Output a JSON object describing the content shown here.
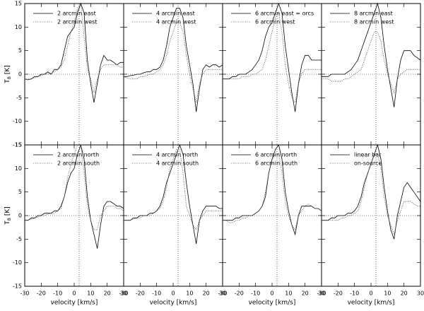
{
  "chart_data": [
    {
      "type": "line",
      "xlim": [
        -30,
        30
      ],
      "ylim": [
        -15,
        15
      ],
      "xticks": [
        -30,
        -20,
        -10,
        0,
        10,
        20,
        30
      ],
      "yticks": [
        -15,
        -10,
        -5,
        0,
        5,
        10,
        15
      ],
      "xtick_labels": false,
      "ytick_labels": true,
      "ylabel": "T",
      "ylabel_sub": "B",
      "ylabel_unit": "[K]",
      "hline": 0,
      "vline": 3,
      "x": [
        -30,
        -28,
        -26,
        -24,
        -22,
        -20,
        -18,
        -16,
        -14,
        -12,
        -10,
        -8,
        -6,
        -4,
        -2,
        0,
        2,
        4,
        6,
        8,
        10,
        12,
        14,
        16,
        18,
        20,
        22,
        24,
        26,
        28,
        30
      ],
      "series": [
        {
          "name": "2 arcmin east",
          "color": "#000000",
          "style": "solid",
          "values": [
            -1,
            -1.2,
            -1,
            -0.5,
            -0.5,
            0,
            0,
            0.5,
            0,
            1,
            1,
            2,
            5,
            8,
            9,
            10,
            13,
            15,
            13,
            3,
            -2,
            -6,
            -2,
            2,
            4,
            3,
            3,
            2.5,
            2,
            2.5,
            2.5
          ]
        },
        {
          "name": "2 arcmin west",
          "color": "#555555",
          "style": "dotted",
          "values": [
            -1,
            -1,
            -1,
            -0.8,
            -0.5,
            -0.3,
            0,
            0,
            0.2,
            0.5,
            1,
            1.5,
            3,
            6,
            9,
            11,
            14,
            15,
            8,
            1,
            -1,
            -4,
            -1,
            1,
            2,
            2,
            2,
            2,
            2,
            1.5,
            1.5
          ]
        }
      ]
    },
    {
      "type": "line",
      "xlim": [
        -30,
        30
      ],
      "ylim": [
        -15,
        15
      ],
      "xticks": [
        -30,
        -20,
        -10,
        0,
        10,
        20,
        30
      ],
      "yticks": [
        -15,
        -10,
        -5,
        0,
        5,
        10,
        15
      ],
      "xtick_labels": false,
      "ytick_labels": false,
      "hline": 0,
      "vline": 3,
      "x": [
        -30,
        -28,
        -26,
        -24,
        -22,
        -20,
        -18,
        -16,
        -14,
        -12,
        -10,
        -8,
        -6,
        -4,
        -2,
        0,
        2,
        4,
        6,
        8,
        10,
        12,
        14,
        16,
        18,
        20,
        22,
        24,
        26,
        28,
        30
      ],
      "series": [
        {
          "name": "4 arcmin east",
          "color": "#000000",
          "style": "solid",
          "values": [
            -0.5,
            -0.5,
            -0.3,
            -0.2,
            0,
            0,
            0.3,
            0.5,
            0.5,
            1,
            1,
            1.5,
            3,
            6,
            10,
            12,
            14,
            14,
            12,
            6,
            2,
            -2,
            -8,
            -3,
            1,
            2,
            1.5,
            2,
            2,
            1.5,
            2
          ]
        },
        {
          "name": "4 arcmin west",
          "color": "#555555",
          "style": "dotted",
          "values": [
            -0.5,
            -0.8,
            -1,
            -1,
            -1,
            -0.5,
            -0.5,
            -0.3,
            0,
            0,
            0.5,
            1,
            2,
            4,
            7,
            9,
            11,
            11,
            9,
            4,
            0,
            -3,
            -6,
            -2,
            0,
            1,
            1,
            1,
            1,
            1,
            1
          ]
        }
      ]
    },
    {
      "type": "line",
      "xlim": [
        -30,
        30
      ],
      "ylim": [
        -15,
        15
      ],
      "xticks": [
        -30,
        -20,
        -10,
        0,
        10,
        20,
        30
      ],
      "yticks": [
        -15,
        -10,
        -5,
        0,
        5,
        10,
        15
      ],
      "xtick_labels": false,
      "ytick_labels": false,
      "hline": 0,
      "vline": 3,
      "x": [
        -30,
        -28,
        -26,
        -24,
        -22,
        -20,
        -18,
        -16,
        -14,
        -12,
        -10,
        -8,
        -6,
        -4,
        -2,
        0,
        2,
        4,
        6,
        8,
        10,
        12,
        14,
        16,
        18,
        20,
        22,
        24,
        26,
        28,
        30
      ],
      "series": [
        {
          "name": "6 arcmin east = orcs",
          "color": "#000000",
          "style": "solid",
          "values": [
            -1,
            -1,
            -1,
            -0.5,
            -0.5,
            0,
            0,
            0,
            0.5,
            1,
            2,
            3,
            5,
            8,
            10,
            11,
            13,
            15,
            13,
            6,
            1,
            -4,
            -8,
            -2,
            2,
            4,
            4,
            3,
            3,
            3,
            3
          ]
        },
        {
          "name": "6 arcmin west",
          "color": "#555555",
          "style": "dotted",
          "values": [
            -1,
            -1,
            -1,
            -1,
            -1,
            -1,
            -0.5,
            -0.5,
            -0.5,
            0,
            0,
            0.5,
            1,
            3,
            6,
            9,
            12,
            13,
            9,
            2,
            -2,
            -5,
            -6,
            -2,
            0,
            1,
            1,
            1,
            1,
            1,
            1
          ]
        }
      ]
    },
    {
      "type": "line",
      "xlim": [
        -30,
        30
      ],
      "ylim": [
        -15,
        15
      ],
      "xticks": [
        -30,
        -20,
        -10,
        0,
        10,
        20,
        30
      ],
      "yticks": [
        -15,
        -10,
        -5,
        0,
        5,
        10,
        15
      ],
      "xtick_labels": false,
      "ytick_labels": false,
      "hline": 0,
      "vline": 3,
      "x": [
        -30,
        -28,
        -26,
        -24,
        -22,
        -20,
        -18,
        -16,
        -14,
        -12,
        -10,
        -8,
        -6,
        -4,
        -2,
        0,
        2,
        4,
        6,
        8,
        10,
        12,
        14,
        16,
        18,
        20,
        22,
        24,
        26,
        28,
        30
      ],
      "series": [
        {
          "name": "8 arcmin east",
          "color": "#000000",
          "style": "solid",
          "values": [
            -0.5,
            -0.5,
            -0.5,
            0,
            0,
            0,
            0,
            0,
            0.5,
            1,
            2,
            3,
            5,
            7,
            9,
            11,
            13,
            15,
            12,
            6,
            1,
            -3,
            -7,
            -1,
            3,
            5,
            5,
            5,
            4,
            3.5,
            3
          ]
        },
        {
          "name": "8 arcmin west",
          "color": "#555555",
          "style": "dotted",
          "values": [
            -1,
            -1,
            -1,
            -1.5,
            -1.5,
            -1.5,
            -1.5,
            -1,
            -1,
            -0.5,
            0,
            0.5,
            1,
            3,
            5,
            7,
            9,
            9,
            7,
            3,
            0,
            -2,
            -4,
            -1,
            0,
            0.5,
            1,
            1,
            1,
            1,
            1
          ]
        }
      ]
    },
    {
      "type": "line",
      "xlim": [
        -30,
        30
      ],
      "ylim": [
        -15,
        15
      ],
      "xticks": [
        -30,
        -20,
        -10,
        0,
        10,
        20,
        30
      ],
      "yticks": [
        -15,
        -10,
        -5,
        0,
        5,
        10,
        15
      ],
      "xtick_labels": true,
      "ytick_labels": true,
      "xlabel": "velocity [km/s]",
      "ylabel": "T",
      "ylabel_sub": "B",
      "ylabel_unit": "[K]",
      "hline": 0,
      "vline": 3,
      "x": [
        -30,
        -28,
        -26,
        -24,
        -22,
        -20,
        -18,
        -16,
        -14,
        -12,
        -10,
        -8,
        -6,
        -4,
        -2,
        0,
        2,
        4,
        6,
        8,
        10,
        12,
        14,
        16,
        18,
        20,
        22,
        24,
        26,
        28,
        30
      ],
      "series": [
        {
          "name": "2 arcmin north",
          "color": "#000000",
          "style": "solid",
          "values": [
            -1,
            -1,
            -0.5,
            -0.5,
            0,
            0,
            0.5,
            0.5,
            0.5,
            1,
            1,
            2,
            4,
            7,
            9,
            10,
            13,
            15,
            12,
            4,
            -1,
            -4,
            -7,
            -2,
            2,
            3,
            3,
            2.5,
            2,
            2,
            1.5
          ]
        },
        {
          "name": "2 arcmin south",
          "color": "#555555",
          "style": "dotted",
          "values": [
            -1,
            -1,
            -0.8,
            -0.5,
            -0.3,
            0,
            0,
            0.3,
            0.5,
            0.5,
            1,
            1.5,
            4,
            8,
            11,
            13,
            15,
            15,
            9,
            2,
            -1,
            -3,
            -3,
            0,
            1,
            2,
            2,
            2,
            1.5,
            1.5,
            1
          ]
        }
      ]
    },
    {
      "type": "line",
      "xlim": [
        -30,
        30
      ],
      "ylim": [
        -15,
        15
      ],
      "xticks": [
        -30,
        -20,
        -10,
        0,
        10,
        20,
        30
      ],
      "yticks": [
        -15,
        -10,
        -5,
        0,
        5,
        10,
        15
      ],
      "xtick_labels": true,
      "ytick_labels": false,
      "xlabel": "velocity [km/s]",
      "hline": 0,
      "vline": 3,
      "x": [
        -30,
        -28,
        -26,
        -24,
        -22,
        -20,
        -18,
        -16,
        -14,
        -12,
        -10,
        -8,
        -6,
        -4,
        -2,
        0,
        2,
        4,
        6,
        8,
        10,
        12,
        14,
        16,
        18,
        20,
        22,
        24,
        26,
        28,
        30
      ],
      "series": [
        {
          "name": "4 arcmin north",
          "color": "#000000",
          "style": "solid",
          "values": [
            -1,
            -1,
            -1,
            -0.5,
            -0.5,
            0,
            0,
            0,
            0.5,
            0.5,
            1,
            2,
            4,
            7,
            9,
            11,
            13,
            15,
            13,
            7,
            2,
            -2,
            -6,
            -1,
            1,
            2,
            2,
            2,
            2,
            1.5,
            1.5
          ]
        },
        {
          "name": "4 arcmin south",
          "color": "#555555",
          "style": "dotted",
          "values": [
            -1,
            -1,
            -1,
            -0.8,
            -0.5,
            -0.5,
            0,
            0,
            0,
            0.5,
            1,
            1.5,
            3,
            6,
            10,
            12,
            14,
            14,
            9,
            2,
            0,
            -2,
            -3,
            -1,
            0,
            1,
            1,
            1,
            1,
            1,
            1
          ]
        }
      ]
    },
    {
      "type": "line",
      "xlim": [
        -30,
        30
      ],
      "ylim": [
        -15,
        15
      ],
      "xticks": [
        -30,
        -20,
        -10,
        0,
        10,
        20,
        30
      ],
      "yticks": [
        -15,
        -10,
        -5,
        0,
        5,
        10,
        15
      ],
      "xtick_labels": true,
      "ytick_labels": false,
      "xlabel": "velocity [km/s]",
      "hline": 0,
      "vline": 3,
      "x": [
        -30,
        -28,
        -26,
        -24,
        -22,
        -20,
        -18,
        -16,
        -14,
        -12,
        -10,
        -8,
        -6,
        -4,
        -2,
        0,
        2,
        4,
        6,
        8,
        10,
        12,
        14,
        16,
        18,
        20,
        22,
        24,
        26,
        28,
        30
      ],
      "series": [
        {
          "name": "6 arcmin north",
          "color": "#000000",
          "style": "solid",
          "values": [
            -1,
            -1,
            -1,
            -1,
            -0.5,
            -0.5,
            0,
            0,
            0,
            0,
            0.5,
            1,
            2,
            4,
            9,
            12,
            14,
            15,
            12,
            5,
            1,
            -2,
            -4,
            0,
            2,
            2,
            2,
            2,
            1.5,
            1.5,
            1
          ]
        },
        {
          "name": "6 arcmin south",
          "color": "#555555",
          "style": "dotted",
          "values": [
            -1,
            -1,
            -1.5,
            -1.5,
            -1,
            -1,
            -0.5,
            -0.5,
            0,
            0,
            0.5,
            1,
            2,
            5,
            9,
            12,
            13,
            13,
            9,
            3,
            0,
            -2,
            -3,
            0,
            1,
            2,
            2.5,
            2,
            1.5,
            1.5,
            1
          ]
        }
      ]
    },
    {
      "type": "line",
      "xlim": [
        -30,
        30
      ],
      "ylim": [
        -15,
        15
      ],
      "xticks": [
        -30,
        -20,
        -10,
        0,
        10,
        20,
        30
      ],
      "yticks": [
        -15,
        -10,
        -5,
        0,
        5,
        10,
        15
      ],
      "xtick_labels": true,
      "ytick_labels": false,
      "xlabel": "velocity [km/s]",
      "hline": 0,
      "vline": 3,
      "x": [
        -30,
        -28,
        -26,
        -24,
        -22,
        -20,
        -18,
        -16,
        -14,
        -12,
        -10,
        -8,
        -6,
        -4,
        -2,
        0,
        2,
        4,
        6,
        8,
        10,
        12,
        14,
        16,
        18,
        20,
        22,
        24,
        26,
        28,
        30
      ],
      "series": [
        {
          "name": "linear bar",
          "color": "#000000",
          "style": "solid",
          "values": [
            -1,
            -1,
            -1,
            -0.5,
            -0.5,
            0,
            0,
            0,
            0.5,
            0.5,
            1,
            2,
            4,
            7,
            9,
            11,
            13,
            15,
            12,
            6,
            1,
            -3,
            -5,
            0,
            3,
            6,
            7,
            6,
            5,
            4,
            3
          ]
        },
        {
          "name": "on-source",
          "color": "#555555",
          "style": "dotted",
          "values": [
            -1,
            -1,
            -1,
            -1,
            -1,
            -1,
            -0.5,
            -0.5,
            0,
            0,
            0.5,
            1,
            3,
            6,
            9,
            11,
            13,
            13,
            10,
            4,
            0,
            -2,
            -4,
            -1,
            1,
            3,
            3,
            3,
            2.5,
            2,
            2
          ]
        }
      ]
    }
  ]
}
